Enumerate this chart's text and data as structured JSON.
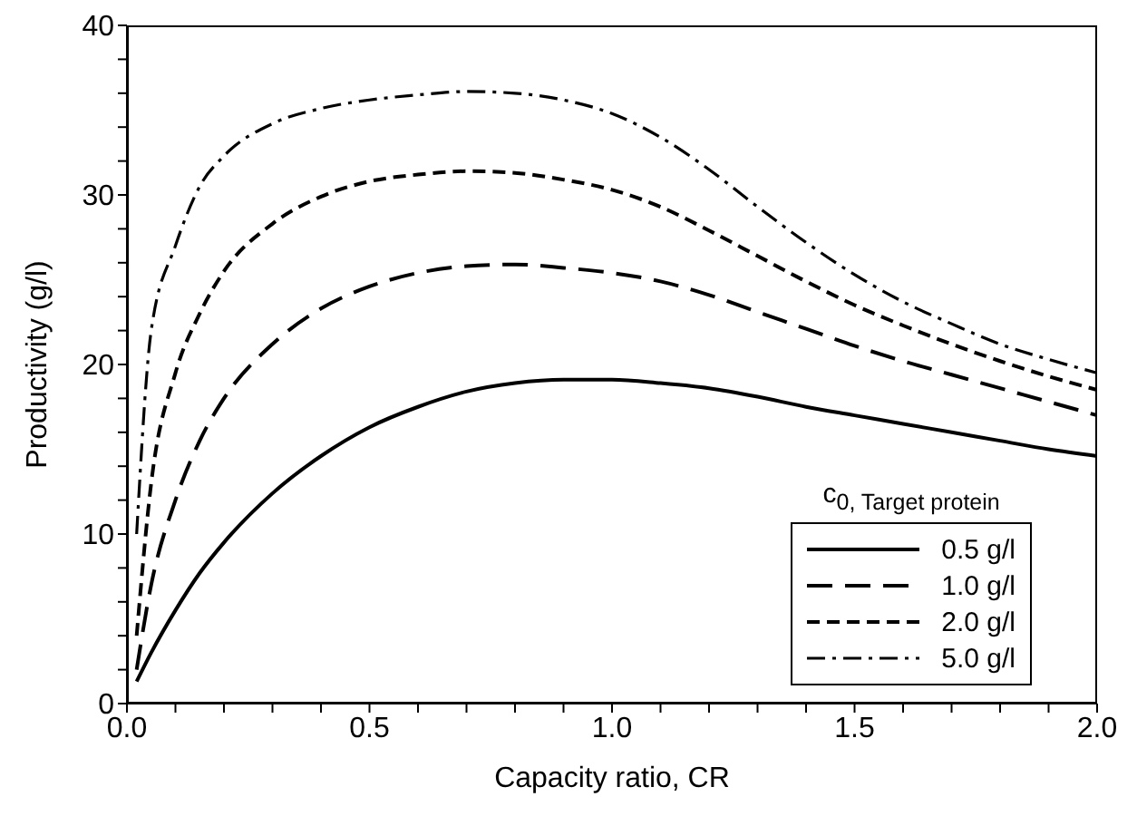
{
  "chart_data": {
    "type": "line",
    "xlabel": "Capacity ratio, CR",
    "ylabel": "Productivity (g/l)",
    "legend_title": "c$_{0, Target protein}$",
    "legend": "bottom right",
    "grid": false,
    "marker": "none",
    "x": [
      0.02,
      0.05,
      0.1,
      0.15,
      0.2,
      0.3,
      0.4,
      0.5,
      0.6,
      0.7,
      0.8,
      0.9,
      1.0,
      1.1,
      1.2,
      1.3,
      1.4,
      1.5,
      1.6,
      1.7,
      1.8,
      1.9,
      2.0
    ],
    "xlim": [
      0,
      2
    ],
    "xticks": [
      {
        "value": 0,
        "label": "0.0"
      },
      {
        "value": 0.1,
        "label": null
      },
      {
        "value": 0.2,
        "label": null
      },
      {
        "value": 0.3,
        "label": null
      },
      {
        "value": 0.4,
        "label": null
      },
      0.5,
      {
        "value": 0.6,
        "label": null
      },
      {
        "value": 0.7,
        "label": null
      },
      {
        "value": 0.8,
        "label": null
      },
      {
        "value": 0.9,
        "label": null
      },
      {
        "value": 1,
        "label": "1.0"
      },
      {
        "value": 1.1,
        "label": null
      },
      {
        "value": 1.2,
        "label": null
      },
      {
        "value": 1.3,
        "label": null
      },
      {
        "value": 1.4,
        "label": null
      },
      1.5,
      {
        "value": 1.6,
        "label": null
      },
      {
        "value": 1.7,
        "label": null
      },
      {
        "value": 1.8,
        "label": null
      },
      {
        "value": 1.9,
        "label": null
      },
      {
        "value": 2,
        "label": "2.0"
      }
    ],
    "ylim": [
      0,
      40
    ],
    "yticks": [
      0,
      {
        "value": 2,
        "label": null
      },
      {
        "value": 4,
        "label": null
      },
      {
        "value": 6,
        "label": null
      },
      {
        "value": 8,
        "label": null
      },
      10,
      {
        "value": 12,
        "label": null
      },
      {
        "value": 14,
        "label": null
      },
      {
        "value": 16,
        "label": null
      },
      {
        "value": 18,
        "label": null
      },
      20,
      {
        "value": 22,
        "label": null
      },
      {
        "value": 24,
        "label": null
      },
      {
        "value": 26,
        "label": null
      },
      {
        "value": 28,
        "label": null
      },
      30,
      {
        "value": 32,
        "label": null
      },
      {
        "value": 34,
        "label": null
      },
      {
        "value": 36,
        "label": null
      },
      {
        "value": 38,
        "label": null
      },
      40
    ],
    "series": [
      {
        "name": "0.5 g/l",
        "color": "#000000",
        "line_style": "solid",
        "values": [
          1.3,
          3.0,
          5.5,
          7.7,
          9.5,
          12.4,
          14.6,
          16.3,
          17.5,
          18.4,
          18.9,
          19.1,
          19.1,
          18.9,
          18.6,
          18.1,
          17.5,
          17.0,
          16.5,
          16.0,
          15.5,
          15.0,
          14.6
        ]
      },
      {
        "name": "1.0 g/l",
        "color": "#000000",
        "line_style": "longdash",
        "values": [
          2.0,
          7,
          12,
          15.5,
          18,
          21.2,
          23.3,
          24.6,
          25.4,
          25.8,
          25.9,
          25.7,
          25.4,
          24.9,
          24.1,
          23.1,
          22.1,
          21.1,
          20.2,
          19.4,
          18.6,
          17.8,
          17.0
        ]
      },
      {
        "name": "2.0 g/l",
        "color": "#000000",
        "line_style": "dashed",
        "values": [
          4,
          13,
          19.5,
          23,
          25.5,
          28.3,
          29.9,
          30.8,
          31.2,
          31.4,
          31.3,
          30.9,
          30.3,
          29.3,
          27.9,
          26.4,
          24.9,
          23.5,
          22.3,
          21.2,
          20.2,
          19.3,
          18.5
        ]
      },
      {
        "name": "5.0 g/l",
        "color": "#000000",
        "line_style": "dashdot",
        "values": [
          10,
          22,
          27,
          30.5,
          32.3,
          34.2,
          35.1,
          35.6,
          35.9,
          36.1,
          36.0,
          35.6,
          34.8,
          33.4,
          31.5,
          29.3,
          27.2,
          25.3,
          23.7,
          22.4,
          21.2,
          20.3,
          19.5
        ]
      }
    ]
  }
}
